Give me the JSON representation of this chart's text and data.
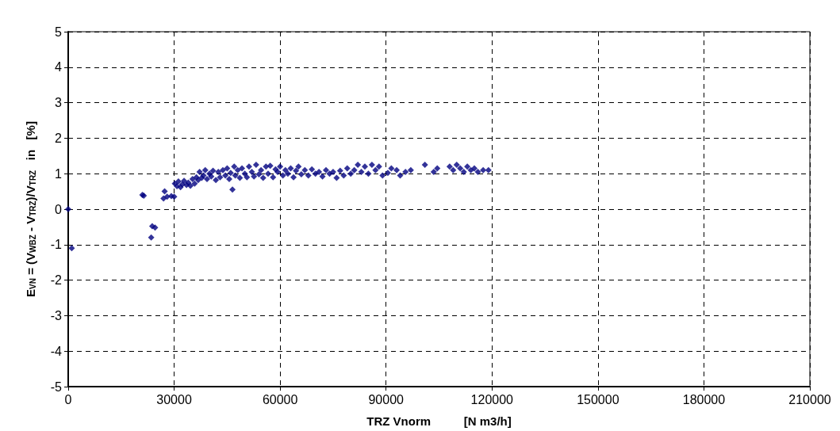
{
  "chart_data": {
    "type": "scatter",
    "xlabel": "TRZ Vnorm          [N m3/h]",
    "ylabel": "E$_{VN}$ = (V$_{WBZ}$ - V$_{TRZ}$)/V$_{TRZ}$   in   [%]",
    "xlim": [
      0,
      210000
    ],
    "xticks": [
      0,
      30000,
      60000,
      90000,
      120000,
      150000,
      180000,
      210000
    ],
    "ylim": [
      -5,
      5
    ],
    "yticks": [
      -5,
      -4,
      -3,
      -2,
      -1,
      0,
      1,
      2,
      3,
      4,
      5
    ],
    "grid": true,
    "marker": "diamond",
    "series": [
      {
        "color": "#000080",
        "x": [
          0,
          1000,
          21000,
          21400,
          23500,
          23800,
          24600,
          27000,
          27300,
          28000,
          29200,
          30000,
          30200,
          30800,
          31200,
          31800,
          32300,
          32800,
          33500,
          34000,
          34600,
          35200,
          35800,
          36300,
          36800,
          37200,
          37800,
          38300,
          38800,
          39300,
          40000,
          40500,
          41000,
          41800,
          42500,
          43000,
          43800,
          44500,
          45000,
          45600,
          46000,
          46500,
          47000,
          47300,
          48000,
          48600,
          49200,
          50000,
          50600,
          51200,
          52000,
          52600,
          53200,
          54000,
          54600,
          55200,
          56000,
          56600,
          57200,
          58000,
          58700,
          59300,
          60000,
          60800,
          61500,
          62200,
          63000,
          63800,
          64500,
          65200,
          66000,
          67000,
          68000,
          69000,
          70000,
          71000,
          72000,
          73000,
          74000,
          75000,
          76000,
          77000,
          78000,
          79000,
          80000,
          81000,
          82000,
          83000,
          84000,
          85000,
          86000,
          87000,
          88000,
          89000,
          90500,
          91500,
          93000,
          94000,
          95500,
          97000,
          101000,
          103500,
          104500,
          108000,
          109000,
          110000,
          111000,
          112000,
          113000,
          114000,
          115000,
          116000,
          117500,
          119000
        ],
        "values": [
          0,
          -1.1,
          0.4,
          0.38,
          -0.8,
          -0.48,
          -0.52,
          0.3,
          0.5,
          0.35,
          0.37,
          0.35,
          0.72,
          0.65,
          0.78,
          0.62,
          0.7,
          0.8,
          0.68,
          0.75,
          0.66,
          0.85,
          0.72,
          0.9,
          0.82,
          1.05,
          0.88,
          0.95,
          1.1,
          0.85,
          1.0,
          0.92,
          1.08,
          0.82,
          1.05,
          0.9,
          1.1,
          0.95,
          1.15,
          0.85,
          1.02,
          0.55,
          1.2,
          0.95,
          1.1,
          0.88,
          1.15,
          1.0,
          0.9,
          1.2,
          1.05,
          0.92,
          1.25,
          0.98,
          1.1,
          0.88,
          1.2,
          1.0,
          1.22,
          0.9,
          1.12,
          1.05,
          1.2,
          0.95,
          1.1,
          1.0,
          1.15,
          0.9,
          1.08,
          1.2,
          0.98,
          1.1,
          0.95,
          1.12,
          1.0,
          1.05,
          0.92,
          1.1,
          1.0,
          1.05,
          0.88,
          1.08,
          0.95,
          1.15,
          1.0,
          1.1,
          1.25,
          1.05,
          1.2,
          1.0,
          1.25,
          1.1,
          1.2,
          0.95,
          1.02,
          1.15,
          1.1,
          0.95,
          1.05,
          1.1,
          1.25,
          1.05,
          1.15,
          1.2,
          1.1,
          1.25,
          1.15,
          1.05,
          1.2,
          1.1,
          1.15,
          1.05,
          1.1,
          1.1
        ]
      }
    ]
  }
}
